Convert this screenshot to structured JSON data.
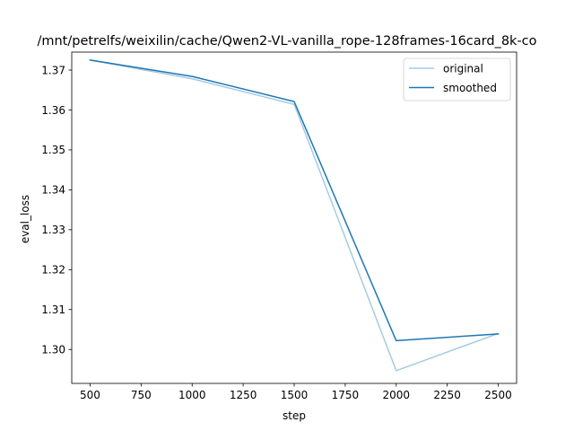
{
  "chart_data": {
    "type": "line",
    "title": "/mnt/petrelfs/weixilin/cache/Qwen2-VL-vanilla_rope-128frames-16card_8k-co",
    "xlabel": "step",
    "ylabel": "eval_loss",
    "xlim": [
      410,
      2590
    ],
    "ylim": [
      1.2915,
      1.3745
    ],
    "xticks": [
      500,
      750,
      1000,
      1250,
      1500,
      1750,
      2000,
      2250,
      2500
    ],
    "xtick_labels": [
      "500",
      "750",
      "1000",
      "1250",
      "1500",
      "1750",
      "2000",
      "2250",
      "2500"
    ],
    "yticks": [
      1.3,
      1.31,
      1.32,
      1.33,
      1.34,
      1.35,
      1.36,
      1.37
    ],
    "ytick_labels": [
      "1.30",
      "1.31",
      "1.32",
      "1.33",
      "1.34",
      "1.35",
      "1.36",
      "1.37"
    ],
    "grid": false,
    "legend_position": "top-right",
    "x": [
      500,
      1000,
      1500,
      2000,
      2500
    ],
    "series": [
      {
        "name": "original",
        "values": [
          1.3725,
          1.3678,
          1.3614,
          1.2947,
          1.304
        ],
        "color": "#a6cbe3"
      },
      {
        "name": "smoothed",
        "values": [
          1.3725,
          1.3684,
          1.3621,
          1.3022,
          1.3039
        ],
        "color": "#1f77b4"
      }
    ]
  }
}
